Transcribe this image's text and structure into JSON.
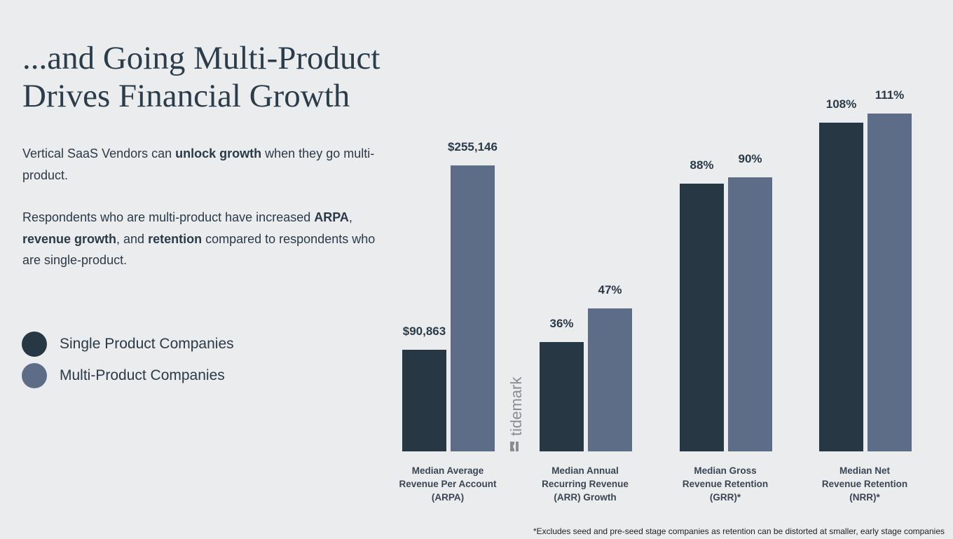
{
  "title_lines": [
    "...and Going Multi-Product",
    "Drives Financial Growth"
  ],
  "paragraph1": {
    "pre": "Vertical SaaS Vendors can ",
    "bold": "unlock growth",
    "post": " when they go multi-product."
  },
  "paragraph2": {
    "t1": "Respondents who are multi-product have increased ",
    "b1": "ARPA",
    "t2": ", ",
    "b2": "revenue growth",
    "t3": ", and ",
    "b3": "retention",
    "t4": " compared to respondents who are single-product."
  },
  "footnote": "*Excludes seed and pre-seed stage companies as retention can be distorted at smaller, early stage companies",
  "watermark": "tidemark",
  "colors": {
    "single": "#283744",
    "multi": "#5d6c87",
    "background": "#ebecee"
  },
  "chart_data": {
    "type": "bar",
    "legend": [
      "Single Product Companies",
      "Multi-Product Companies"
    ],
    "legend_placement": "left",
    "categories": [
      "Median Average Revenue Per Account (ARPA)",
      "Median Annual Recurring Revenue (ARR) Growth",
      "Median Gross Revenue Retention (GRR)*",
      "Median Net Revenue Retention (NRR)*"
    ],
    "category_lines": [
      [
        "Median Average",
        "Revenue Per Account",
        "(ARPA)"
      ],
      [
        "Median Annual",
        "Recurring Revenue",
        "(ARR) Growth"
      ],
      [
        "Median Gross",
        "Revenue Retention",
        "(GRR)*"
      ],
      [
        "Median Net",
        "Revenue Retention",
        "(NRR)*"
      ]
    ],
    "series": [
      {
        "name": "Single Product Companies",
        "values": [
          90863,
          36,
          88,
          108
        ],
        "labels": [
          "$90,863",
          "36%",
          "88%",
          "108%"
        ]
      },
      {
        "name": "Multi-Product Companies",
        "values": [
          255146,
          47,
          90,
          111
        ],
        "labels": [
          "$255,146",
          "47%",
          "90%",
          "111%"
        ]
      }
    ],
    "units": [
      "USD",
      "%",
      "%",
      "%"
    ],
    "grid": false
  }
}
